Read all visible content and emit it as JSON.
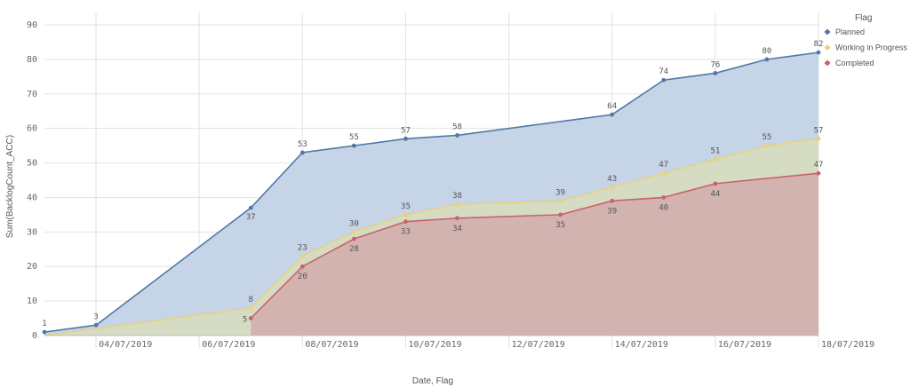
{
  "chart_data": {
    "type": "area",
    "xlabel": "Date, Flag",
    "ylabel": "Sum(BacklogCount_ACC)",
    "ylim": [
      0,
      90
    ],
    "yticks": [
      0,
      10,
      20,
      30,
      40,
      50,
      60,
      70,
      80,
      90
    ],
    "xlim": [
      "2019-07-03",
      "2019-07-18"
    ],
    "xticks": [
      "04/07/2019",
      "06/07/2019",
      "08/07/2019",
      "10/07/2019",
      "12/07/2019",
      "14/07/2019",
      "16/07/2019",
      "18/07/2019"
    ],
    "grid": true,
    "legend": {
      "title": "Flag",
      "position": "top-right"
    },
    "series": [
      {
        "name": "Planned",
        "color": "#4e79a7",
        "fill": "#c5d4e6",
        "points": [
          [
            "2019-07-03",
            1
          ],
          [
            "2019-07-04",
            3
          ],
          [
            "2019-07-07",
            37
          ],
          [
            "2019-07-08",
            53
          ],
          [
            "2019-07-09",
            55
          ],
          [
            "2019-07-10",
            57
          ],
          [
            "2019-07-11",
            58
          ],
          [
            "2019-07-13",
            62
          ],
          [
            "2019-07-14",
            64
          ],
          [
            "2019-07-15",
            74
          ],
          [
            "2019-07-16",
            76
          ],
          [
            "2019-07-17",
            80
          ],
          [
            "2019-07-18",
            82
          ]
        ],
        "labels": [
          [
            "2019-07-03",
            1
          ],
          [
            "2019-07-04",
            3
          ],
          [
            "2019-07-07",
            37
          ],
          [
            "2019-07-08",
            53
          ],
          [
            "2019-07-09",
            55
          ],
          [
            "2019-07-10",
            57
          ],
          [
            "2019-07-11",
            58
          ],
          [
            "2019-07-14",
            64
          ],
          [
            "2019-07-15",
            74
          ],
          [
            "2019-07-16",
            76
          ],
          [
            "2019-07-17",
            80
          ],
          [
            "2019-07-18",
            82
          ]
        ]
      },
      {
        "name": "Working in Progress",
        "color": "#e8d27c",
        "fill": "#d6dcc3",
        "points": [
          [
            "2019-07-03",
            0
          ],
          [
            "2019-07-07",
            8
          ],
          [
            "2019-07-08",
            23
          ],
          [
            "2019-07-09",
            30
          ],
          [
            "2019-07-10",
            35
          ],
          [
            "2019-07-11",
            38
          ],
          [
            "2019-07-13",
            39
          ],
          [
            "2019-07-14",
            43
          ],
          [
            "2019-07-15",
            47
          ],
          [
            "2019-07-16",
            51
          ],
          [
            "2019-07-17",
            55
          ],
          [
            "2019-07-18",
            57
          ]
        ],
        "labels": [
          [
            "2019-07-07",
            8
          ],
          [
            "2019-07-08",
            23
          ],
          [
            "2019-07-09",
            30
          ],
          [
            "2019-07-10",
            35
          ],
          [
            "2019-07-11",
            38
          ],
          [
            "2019-07-13",
            39
          ],
          [
            "2019-07-14",
            43
          ],
          [
            "2019-07-15",
            47
          ],
          [
            "2019-07-16",
            51
          ],
          [
            "2019-07-17",
            55
          ],
          [
            "2019-07-18",
            57
          ]
        ]
      },
      {
        "name": "Completed",
        "color": "#c9626a",
        "fill": "#d2b3b0",
        "points": [
          [
            "2019-07-07",
            5
          ],
          [
            "2019-07-08",
            20
          ],
          [
            "2019-07-09",
            28
          ],
          [
            "2019-07-10",
            33
          ],
          [
            "2019-07-11",
            34
          ],
          [
            "2019-07-13",
            35
          ],
          [
            "2019-07-14",
            39
          ],
          [
            "2019-07-15",
            40
          ],
          [
            "2019-07-16",
            44
          ],
          [
            "2019-07-18",
            47
          ]
        ],
        "labels": [
          [
            "2019-07-07",
            5
          ],
          [
            "2019-07-08",
            20
          ],
          [
            "2019-07-09",
            28
          ],
          [
            "2019-07-10",
            33
          ],
          [
            "2019-07-11",
            34
          ],
          [
            "2019-07-13",
            35
          ],
          [
            "2019-07-14",
            39
          ],
          [
            "2019-07-15",
            40
          ],
          [
            "2019-07-16",
            44
          ],
          [
            "2019-07-18",
            47
          ]
        ]
      }
    ]
  }
}
